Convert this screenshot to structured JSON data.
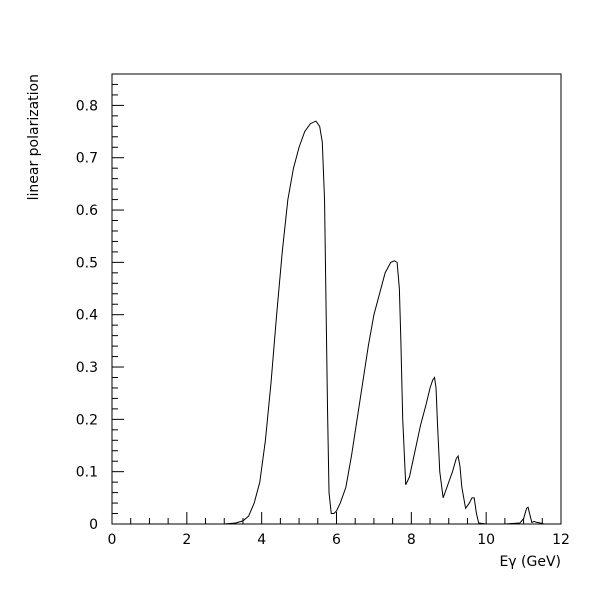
{
  "chart_data": {
    "type": "line",
    "title": "",
    "xlabel": "Eγ (GeV)",
    "ylabel": "linear polarization",
    "xlim": [
      0,
      12
    ],
    "ylim": [
      0,
      0.86
    ],
    "xticks": [
      0,
      2,
      4,
      6,
      8,
      10,
      12
    ],
    "xtick_labels": [
      "0",
      "2",
      "4",
      "6",
      "8",
      "10",
      "12"
    ],
    "yticks": [
      0,
      0.1,
      0.2,
      0.3,
      0.4,
      0.5,
      0.6,
      0.7,
      0.8
    ],
    "ytick_labels": [
      "0",
      "0.1",
      "0.2",
      "0.3",
      "0.4",
      "0.5",
      "0.6",
      "0.7",
      "0.8"
    ],
    "grid": false,
    "legend": "none",
    "line_color": "#000000",
    "series": [
      {
        "x": [
          3.0,
          3.3,
          3.5,
          3.65,
          3.8,
          3.95,
          4.1,
          4.25,
          4.4,
          4.55,
          4.7,
          4.85,
          5.0,
          5.15,
          5.3,
          5.45,
          5.55,
          5.62,
          5.68,
          5.72,
          5.76,
          5.8,
          5.86,
          5.93,
          6.0,
          6.1,
          6.25,
          6.4,
          6.55,
          6.7,
          6.85,
          7.0,
          7.15,
          7.3,
          7.45,
          7.55,
          7.62,
          7.68,
          7.72,
          7.77,
          7.85,
          7.95,
          8.1,
          8.25,
          8.4,
          8.5,
          8.57,
          8.62,
          8.66,
          8.7,
          8.76,
          8.85,
          9.0,
          9.1,
          9.2,
          9.25,
          9.3,
          9.35,
          9.45,
          9.55,
          9.62,
          9.68,
          9.74,
          9.8,
          10.0,
          10.5,
          10.9,
          11.0,
          11.08,
          11.12,
          11.16,
          11.22,
          11.28,
          11.35,
          11.45,
          11.55
        ],
        "y": [
          0.0,
          0.002,
          0.006,
          0.015,
          0.04,
          0.08,
          0.16,
          0.27,
          0.4,
          0.52,
          0.62,
          0.68,
          0.72,
          0.75,
          0.765,
          0.77,
          0.76,
          0.73,
          0.62,
          0.42,
          0.22,
          0.06,
          0.02,
          0.02,
          0.025,
          0.04,
          0.07,
          0.13,
          0.2,
          0.27,
          0.34,
          0.4,
          0.44,
          0.48,
          0.5,
          0.503,
          0.5,
          0.45,
          0.35,
          0.2,
          0.075,
          0.09,
          0.14,
          0.19,
          0.23,
          0.26,
          0.275,
          0.28,
          0.26,
          0.19,
          0.1,
          0.05,
          0.08,
          0.1,
          0.125,
          0.13,
          0.11,
          0.07,
          0.03,
          0.04,
          0.05,
          0.05,
          0.02,
          0.002,
          0.0,
          0.0,
          0.002,
          0.01,
          0.03,
          0.032,
          0.02,
          0.003,
          0.005,
          0.003,
          0.002,
          0.0
        ]
      }
    ]
  }
}
